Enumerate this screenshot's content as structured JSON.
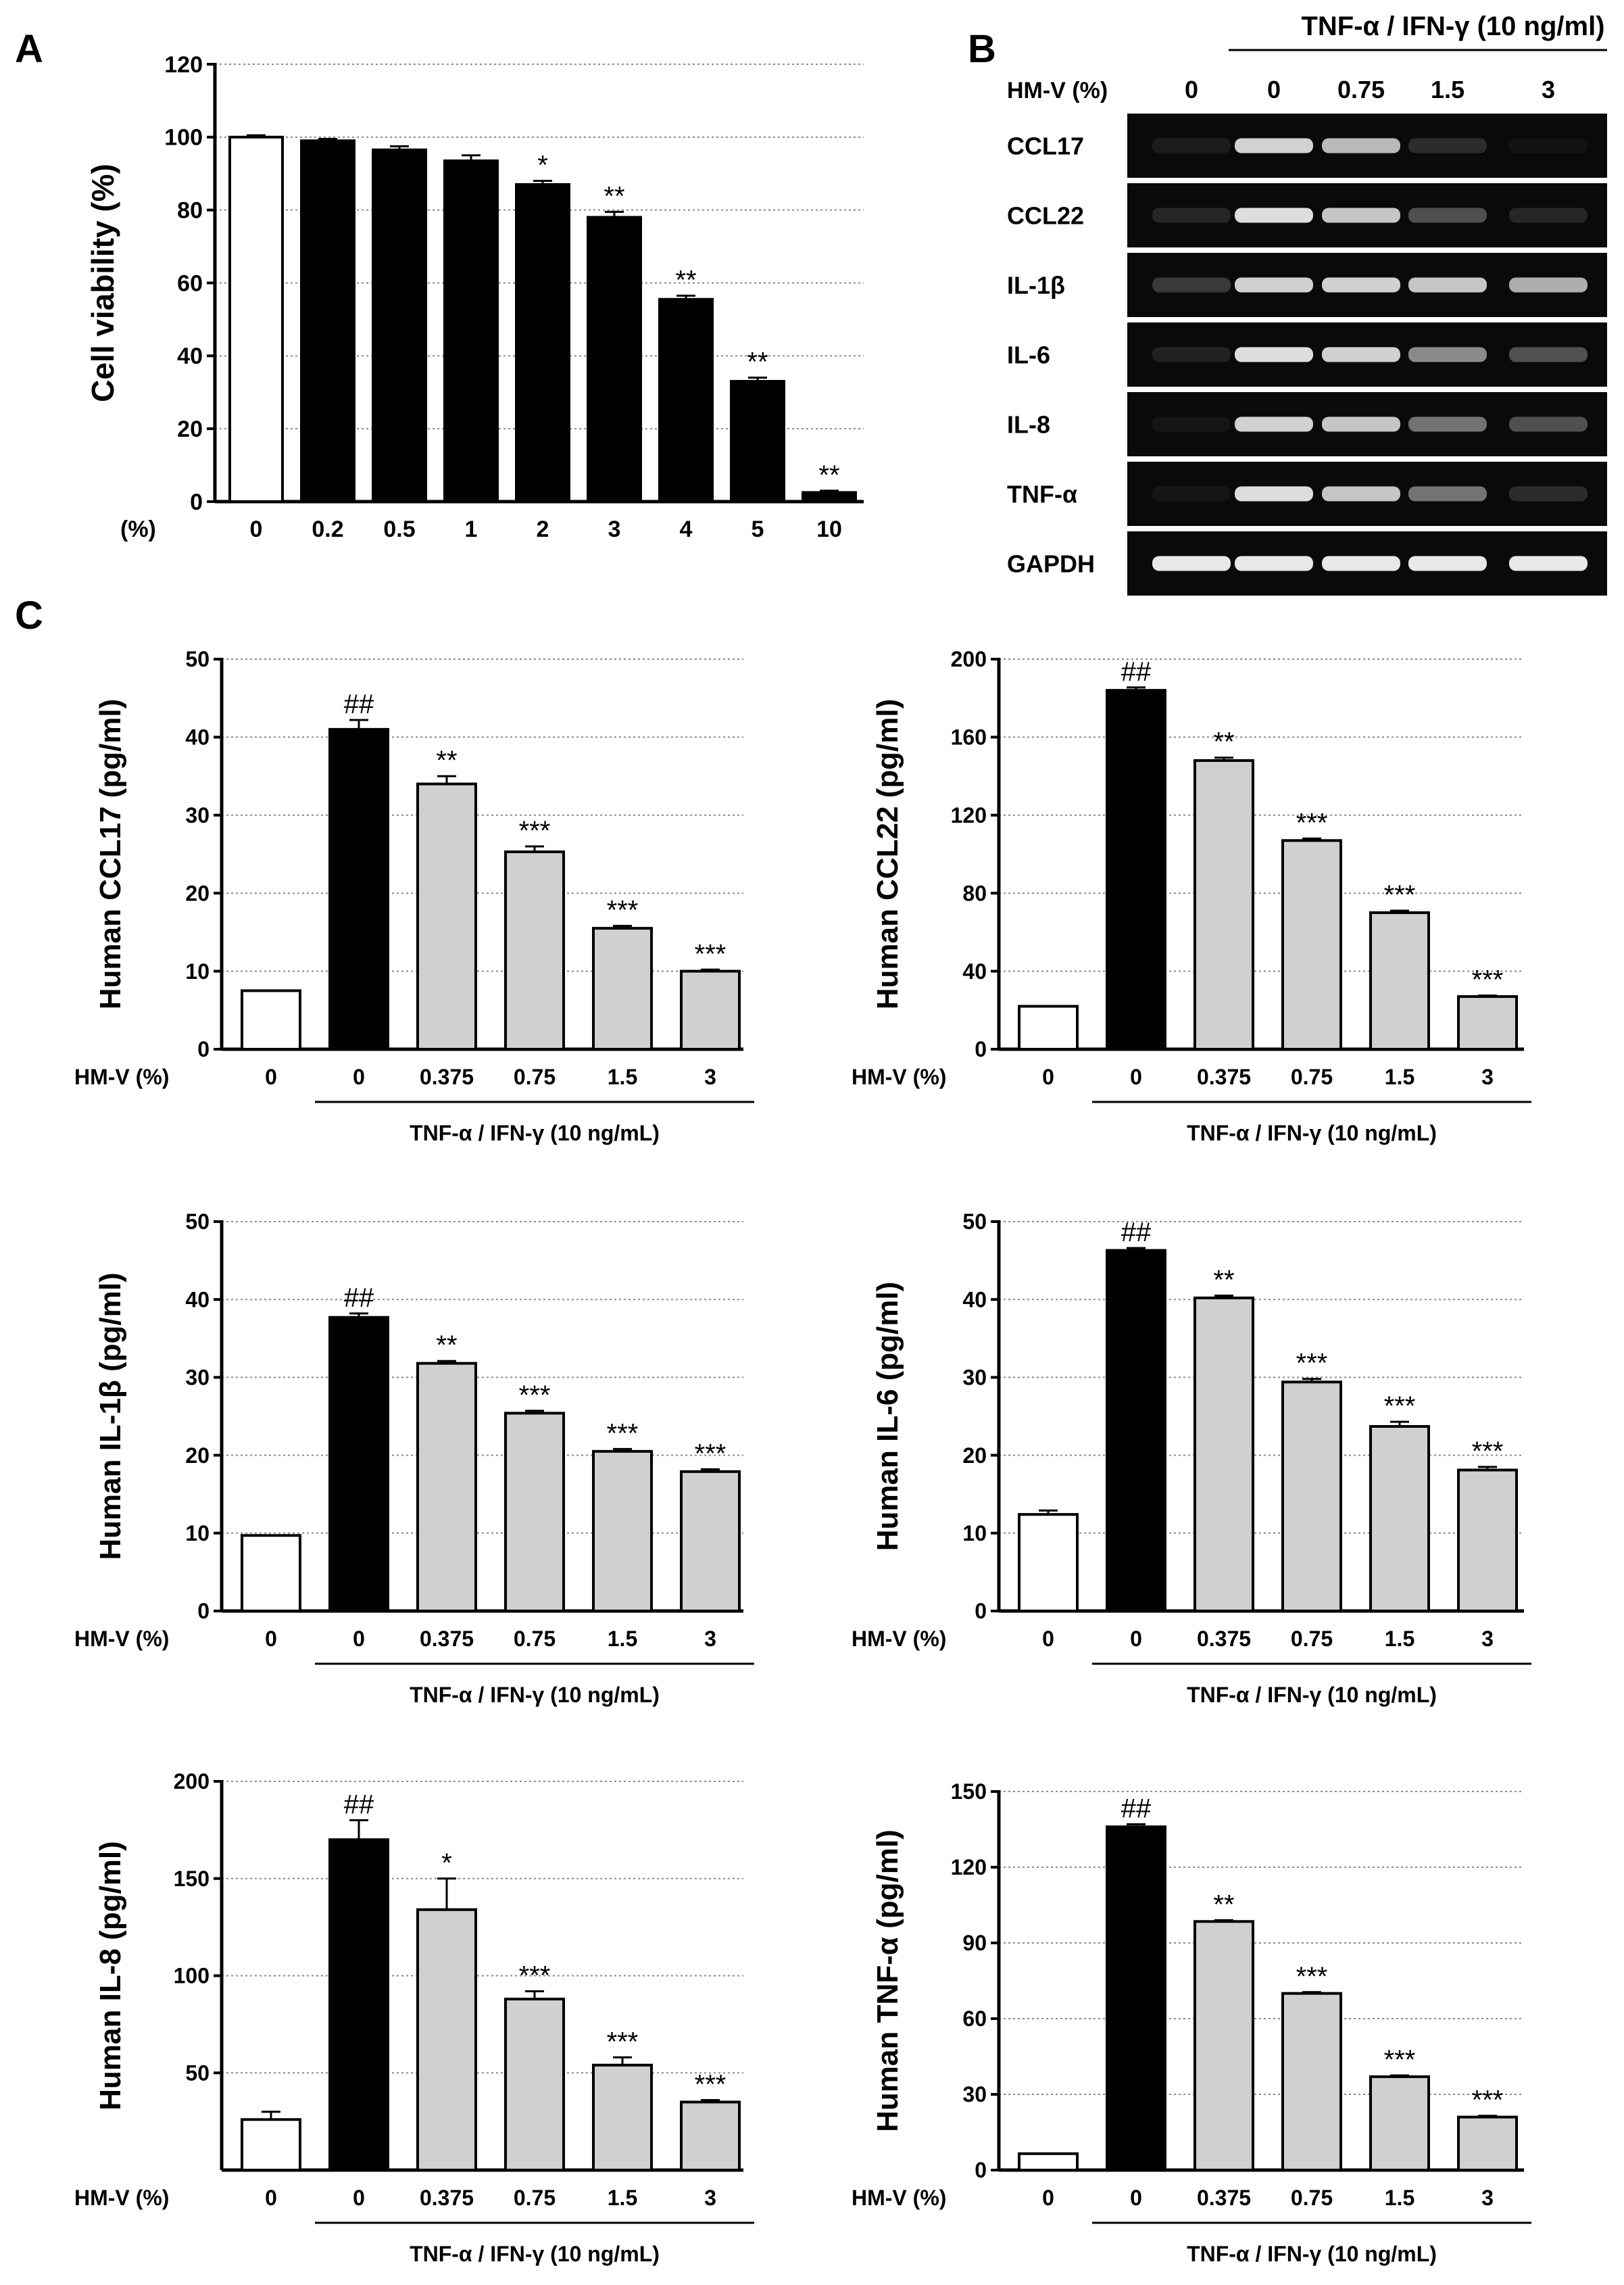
{
  "panel_letters": {
    "a": "A",
    "b": "B",
    "c": "C"
  },
  "colors": {
    "black": "#000000",
    "white": "#ffffff",
    "gray": "#d0d0d0",
    "gel_bg": "#0a0a0a",
    "gel_band": "#f4f4f4"
  },
  "treatment_label": "TNF-α / IFN-γ (10 ng/mL)",
  "hmv_label": "HM-V (%)",
  "chart_data": [
    {
      "id": "A",
      "type": "bar",
      "title": "",
      "xlabel": "(%)",
      "ylabel": "Cell viability (%)",
      "ylim": [
        0,
        120
      ],
      "yticks": [
        0,
        20,
        40,
        60,
        80,
        100,
        120
      ],
      "grid": true,
      "categories": [
        "0",
        "0.2",
        "0.5",
        "1",
        "2",
        "3",
        "4",
        "5",
        "10"
      ],
      "values": [
        100,
        99,
        96.5,
        93.5,
        87,
        78,
        55.5,
        33,
        2.5
      ],
      "errors": [
        0.5,
        0.5,
        1,
        1.5,
        1,
        1.5,
        1,
        1,
        0.5
      ],
      "fills": [
        "white",
        "black",
        "black",
        "black",
        "black",
        "black",
        "black",
        "black",
        "black"
      ],
      "annotations": [
        "",
        "",
        "",
        "",
        "*",
        "**",
        "**",
        "**",
        "**"
      ]
    },
    {
      "id": "C1",
      "type": "bar",
      "ylabel": "Human CCL17 (pg/ml)",
      "ylim": [
        0,
        50
      ],
      "yticks": [
        0,
        10,
        20,
        30,
        40,
        50
      ],
      "grid": true,
      "categories": [
        "0",
        "0",
        "0.375",
        "0.75",
        "1.5",
        "3"
      ],
      "values": [
        7.5,
        41,
        34,
        25.3,
        15.5,
        10
      ],
      "errors": [
        0,
        1.2,
        1,
        0.7,
        0.3,
        0.2
      ],
      "fills": [
        "white",
        "black",
        "gray",
        "gray",
        "gray",
        "gray"
      ],
      "annotations": [
        "",
        "##",
        "**",
        "***",
        "***",
        "***"
      ]
    },
    {
      "id": "C2",
      "type": "bar",
      "ylabel": "Human CCL22 (pg/ml)",
      "ylim": [
        0,
        200
      ],
      "yticks": [
        0,
        40,
        80,
        120,
        160,
        200
      ],
      "grid": true,
      "categories": [
        "0",
        "0",
        "0.375",
        "0.75",
        "1.5",
        "3"
      ],
      "values": [
        22,
        184,
        148,
        107,
        70,
        27
      ],
      "errors": [
        0,
        1.5,
        1.5,
        1,
        1,
        0.5
      ],
      "fills": [
        "white",
        "black",
        "gray",
        "gray",
        "gray",
        "gray"
      ],
      "annotations": [
        "",
        "##",
        "**",
        "***",
        "***",
        "***"
      ]
    },
    {
      "id": "C3",
      "type": "bar",
      "ylabel": "Human IL-1β (pg/ml)",
      "ylim": [
        0,
        50
      ],
      "yticks": [
        0,
        10,
        20,
        30,
        40,
        50
      ],
      "grid": true,
      "categories": [
        "0",
        "0",
        "0.375",
        "0.75",
        "1.5",
        "3"
      ],
      "values": [
        9.7,
        37.7,
        31.8,
        25.4,
        20.5,
        17.9
      ],
      "errors": [
        0,
        0.5,
        0.3,
        0.3,
        0.3,
        0.3
      ],
      "fills": [
        "white",
        "black",
        "gray",
        "gray",
        "gray",
        "gray"
      ],
      "annotations": [
        "",
        "##",
        "**",
        "***",
        "***",
        "***"
      ]
    },
    {
      "id": "C4",
      "type": "bar",
      "ylabel": "Human IL-6 (pg/ml)",
      "ylim": [
        0,
        50
      ],
      "yticks": [
        0,
        10,
        20,
        30,
        40,
        50
      ],
      "grid": true,
      "categories": [
        "0",
        "0",
        "0.375",
        "0.75",
        "1.5",
        "3"
      ],
      "values": [
        12.4,
        46.3,
        40.2,
        29.4,
        23.7,
        18.1
      ],
      "errors": [
        0.5,
        0.3,
        0.3,
        0.4,
        0.6,
        0.4
      ],
      "fills": [
        "white",
        "black",
        "gray",
        "gray",
        "gray",
        "gray"
      ],
      "annotations": [
        "",
        "##",
        "**",
        "***",
        "***",
        "***"
      ]
    },
    {
      "id": "C5",
      "type": "bar",
      "ylabel": "Human IL-8 (pg/ml)",
      "ylim": [
        0,
        200
      ],
      "yticks": [
        50,
        100,
        150,
        200
      ],
      "grid": true,
      "categories": [
        "0",
        "0",
        "0.375",
        "0.75",
        "1.5",
        "3"
      ],
      "values": [
        26,
        170,
        134,
        88,
        54,
        35
      ],
      "errors": [
        4,
        10,
        16,
        4,
        4,
        1
      ],
      "fills": [
        "white",
        "black",
        "gray",
        "gray",
        "gray",
        "gray"
      ],
      "annotations": [
        "",
        "##",
        "*",
        "***",
        "***",
        "***"
      ]
    },
    {
      "id": "C6",
      "type": "bar",
      "ylabel": "Human TNF-α (pg/ml)",
      "ylim": [
        0,
        150
      ],
      "yticks": [
        0,
        30,
        60,
        90,
        120,
        150
      ],
      "grid": true,
      "categories": [
        "0",
        "0",
        "0.375",
        "0.75",
        "1.5",
        "3"
      ],
      "values": [
        6.5,
        136,
        98.5,
        70,
        37,
        21
      ],
      "errors": [
        0,
        1,
        0.5,
        0.5,
        0.5,
        0.5
      ],
      "fills": [
        "white",
        "black",
        "gray",
        "gray",
        "gray",
        "gray"
      ],
      "annotations": [
        "",
        "##",
        "**",
        "***",
        "***",
        "***"
      ]
    }
  ],
  "gel": {
    "treatment": "TNF-α / IFN-γ (10 ng/ml)",
    "hmv_label": "HM-V (%)",
    "lanes": [
      "0",
      "0",
      "0.75",
      "1.5",
      "3"
    ],
    "genes": [
      {
        "name": "CCL17",
        "intensity": [
          0.08,
          0.85,
          0.75,
          0.15,
          0.04
        ]
      },
      {
        "name": "CCL22",
        "intensity": [
          0.12,
          0.9,
          0.8,
          0.3,
          0.12
        ]
      },
      {
        "name": "IL-1β",
        "intensity": [
          0.2,
          0.85,
          0.85,
          0.8,
          0.7
        ]
      },
      {
        "name": "IL-6",
        "intensity": [
          0.1,
          0.9,
          0.85,
          0.55,
          0.3
        ]
      },
      {
        "name": "IL-8",
        "intensity": [
          0.05,
          0.85,
          0.8,
          0.45,
          0.3
        ]
      },
      {
        "name": "TNF-α",
        "intensity": [
          0.05,
          0.9,
          0.8,
          0.45,
          0.15
        ]
      },
      {
        "name": "GAPDH",
        "intensity": [
          0.95,
          0.95,
          0.95,
          0.95,
          0.95
        ]
      }
    ]
  }
}
